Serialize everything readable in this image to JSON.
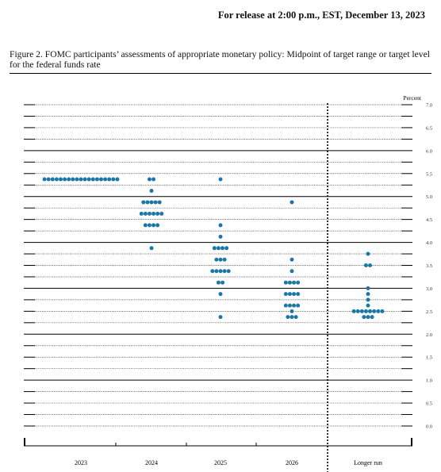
{
  "header": {
    "release_line": "For release at 2:00 p.m., EST, December 13, 2023"
  },
  "figure": {
    "caption": "Figure 2.  FOMC participants’ assessments of appropriate monetary policy:  Midpoint of target range or target level for the federal funds rate"
  },
  "colors": {
    "dot": "#1a77a8",
    "line": "#000000"
  },
  "chart_data": {
    "type": "scatter",
    "subtype": "dot-plot",
    "ylabel": "Percent",
    "ylim": [
      0.0,
      7.0
    ],
    "y_ticks": [
      {
        "value": 0.0,
        "label": "0.0"
      },
      {
        "value": 0.5,
        "label": "0.5"
      },
      {
        "value": 1.0,
        "label": "1.0"
      },
      {
        "value": 1.5,
        "label": "1.5"
      },
      {
        "value": 2.0,
        "label": "2.0"
      },
      {
        "value": 2.5,
        "label": "2.5"
      },
      {
        "value": 3.0,
        "label": "3.0"
      },
      {
        "value": 3.5,
        "label": "3.5"
      },
      {
        "value": 4.0,
        "label": "4.0"
      },
      {
        "value": 4.5,
        "label": "4.5"
      },
      {
        "value": 5.0,
        "label": "5.0"
      },
      {
        "value": 5.5,
        "label": "5.5"
      },
      {
        "value": 6.0,
        "label": "6.0"
      },
      {
        "value": 6.5,
        "label": "6.5"
      },
      {
        "value": 7.0,
        "label": "7.0"
      }
    ],
    "categories": [
      "2023",
      "2024",
      "2025",
      "2026",
      "Longer run"
    ],
    "separator_after_category": "2026",
    "dots": [
      {
        "category": "2023",
        "points": [
          {
            "y": 5.375,
            "count": 19
          }
        ]
      },
      {
        "category": "2024",
        "points": [
          {
            "y": 5.375,
            "count": 2
          },
          {
            "y": 5.125,
            "count": 1
          },
          {
            "y": 4.875,
            "count": 5
          },
          {
            "y": 4.625,
            "count": 6
          },
          {
            "y": 4.375,
            "count": 4
          },
          {
            "y": 3.875,
            "count": 1
          }
        ]
      },
      {
        "category": "2025",
        "points": [
          {
            "y": 5.375,
            "count": 1
          },
          {
            "y": 4.375,
            "count": 1
          },
          {
            "y": 4.125,
            "count": 1
          },
          {
            "y": 3.875,
            "count": 4
          },
          {
            "y": 3.625,
            "count": 3
          },
          {
            "y": 3.375,
            "count": 5
          },
          {
            "y": 3.125,
            "count": 2
          },
          {
            "y": 2.875,
            "count": 1
          },
          {
            "y": 2.375,
            "count": 1
          }
        ]
      },
      {
        "category": "2026",
        "points": [
          {
            "y": 4.875,
            "count": 1
          },
          {
            "y": 3.625,
            "count": 1
          },
          {
            "y": 3.375,
            "count": 1
          },
          {
            "y": 3.125,
            "count": 4
          },
          {
            "y": 2.875,
            "count": 4
          },
          {
            "y": 2.625,
            "count": 4
          },
          {
            "y": 2.5,
            "count": 1
          },
          {
            "y": 2.375,
            "count": 3
          }
        ]
      },
      {
        "category": "Longer run",
        "points": [
          {
            "y": 3.75,
            "count": 1
          },
          {
            "y": 3.5,
            "count": 2
          },
          {
            "y": 3.0,
            "count": 1
          },
          {
            "y": 2.875,
            "count": 1
          },
          {
            "y": 2.75,
            "count": 1
          },
          {
            "y": 2.625,
            "count": 1
          },
          {
            "y": 2.5,
            "count": 8
          },
          {
            "y": 2.375,
            "count": 3
          }
        ]
      }
    ]
  }
}
